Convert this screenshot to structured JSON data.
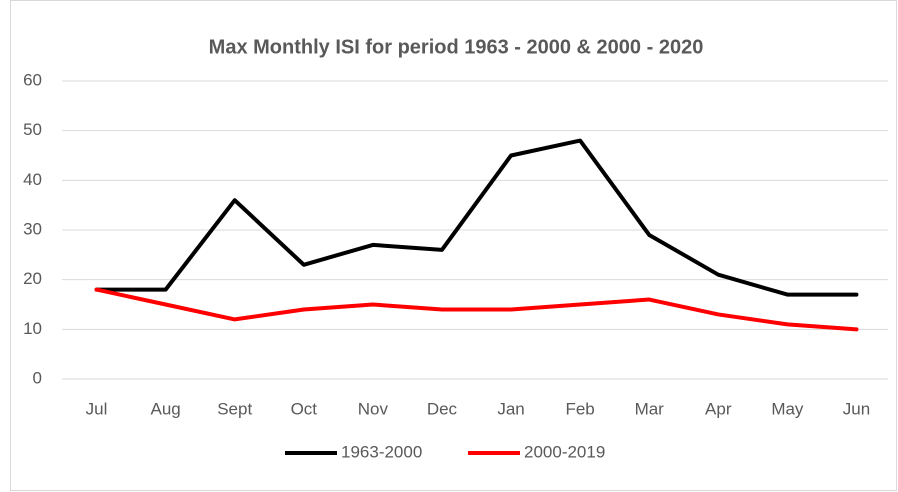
{
  "chart_data": {
    "type": "line",
    "title": "Max Monthly ISI for period 1963 - 2000 & 2000 - 2020",
    "categories": [
      "Jul",
      "Aug",
      "Sept",
      "Oct",
      "Nov",
      "Dec",
      "Jan",
      "Feb",
      "Mar",
      "Apr",
      "May",
      "Jun"
    ],
    "series": [
      {
        "name": "1963-2000",
        "color": "#000000",
        "values": [
          18,
          18,
          36,
          23,
          27,
          26,
          45,
          48,
          29,
          21,
          17,
          17
        ]
      },
      {
        "name": "2000-2019",
        "color": "#ff0000",
        "values": [
          18,
          15,
          12,
          14,
          15,
          14,
          14,
          15,
          16,
          13,
          11,
          10
        ]
      }
    ],
    "ylim": [
      0,
      60
    ],
    "yticks": [
      0,
      10,
      20,
      30,
      40,
      50,
      60
    ],
    "grid": true,
    "legend": "bottom"
  }
}
